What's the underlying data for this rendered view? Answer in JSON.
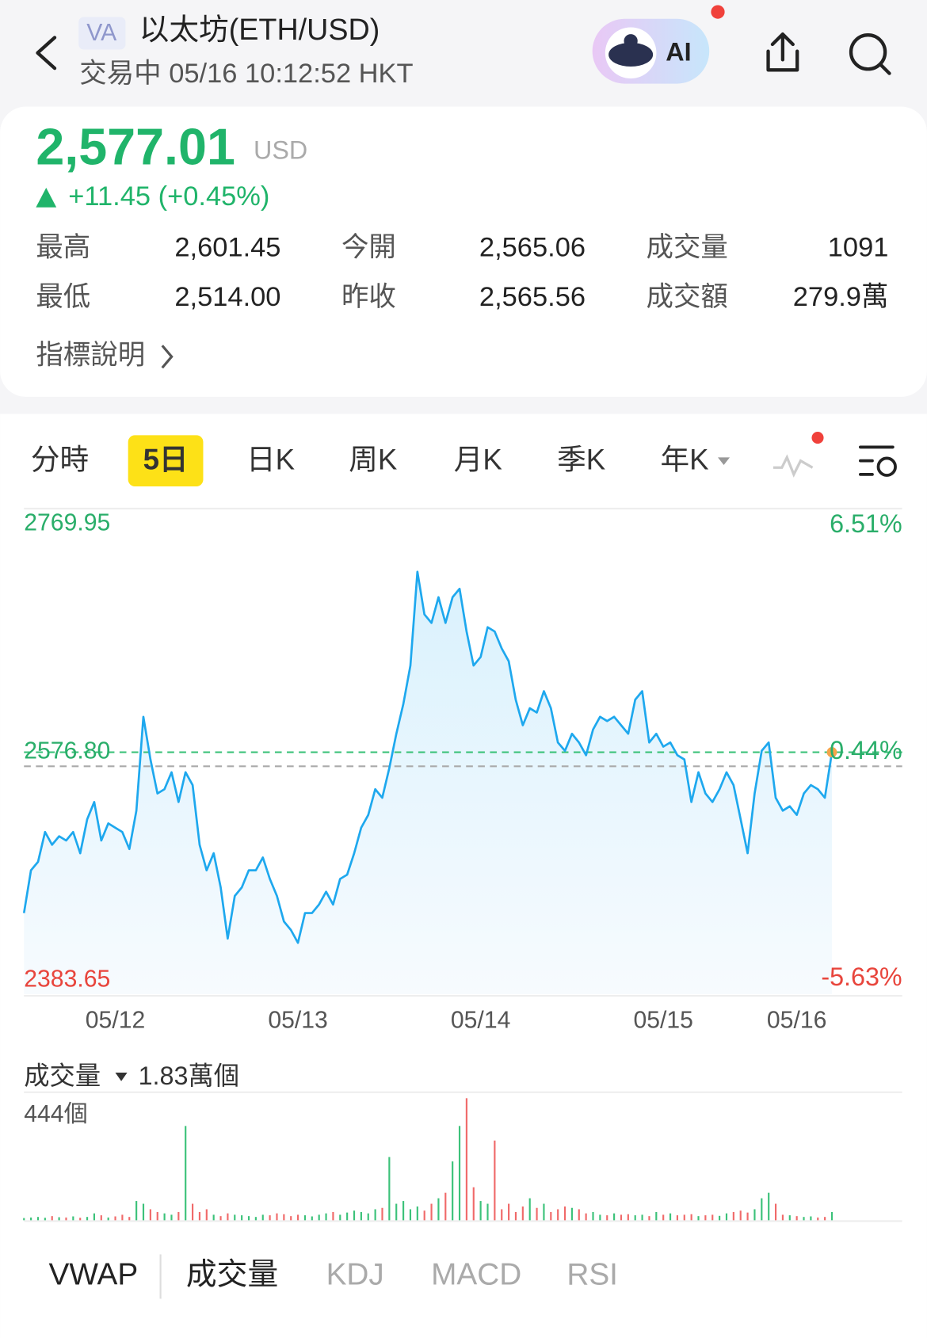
{
  "header": {
    "badge": "VA",
    "title": "以太坊(ETH/USD)",
    "status": "交易中 05/16 10:12:52 HKT",
    "ai": "AI"
  },
  "quote": {
    "price": "2,577.01",
    "currency": "USD",
    "change": "+11.45 (+0.45%)",
    "stats": [
      [
        {
          "label": "最高",
          "value": "2,601.45"
        },
        {
          "label": "今開",
          "value": "2,565.06"
        },
        {
          "label": "成交量",
          "value": "1091"
        }
      ],
      [
        {
          "label": "最低",
          "value": "2,514.00"
        },
        {
          "label": "昨收",
          "value": "2,565.56"
        },
        {
          "label": "成交額",
          "value": "279.9萬"
        }
      ]
    ],
    "indicator_link": "指標說明"
  },
  "tabs": {
    "items": [
      "分時",
      "5日",
      "日K",
      "周K",
      "月K",
      "季K",
      "年K"
    ],
    "active": 1
  },
  "chart_data": {
    "type": "line",
    "color": "#1ea8ee",
    "prev_close": 2565.56,
    "xlim": [
      0,
      125
    ],
    "xticks": [
      {
        "value": 13,
        "label": "05/12"
      },
      {
        "value": 39,
        "label": "05/13"
      },
      {
        "value": 65,
        "label": "05/14"
      },
      {
        "value": 91,
        "label": "05/15"
      },
      {
        "value": 110,
        "label": "05/16"
      }
    ],
    "ylim": [
      2383.65,
      2769.95
    ],
    "yticks": [
      2769.95,
      2383.65
    ],
    "y2lim": [
      -5.63,
      6.51
    ],
    "y2ticks": [
      {
        "value": 6.51,
        "label": "6.51%"
      },
      {
        "value": -5.63,
        "label": "-5.63%"
      }
    ],
    "last_price": {
      "value": 2576.8,
      "label": "2576.80"
    },
    "last_change": {
      "value": 0.44,
      "label": "0.44%"
    },
    "values": [
      2448.4,
      2482.5,
      2489.3,
      2513.1,
      2502.9,
      2509.7,
      2506.3,
      2513.1,
      2496.1,
      2523.3,
      2537.0,
      2506.3,
      2520.0,
      2516.5,
      2513.1,
      2499.5,
      2530.1,
      2605.1,
      2571.0,
      2543.8,
      2547.2,
      2560.8,
      2537.0,
      2560.8,
      2550.6,
      2502.9,
      2482.5,
      2496.1,
      2468.8,
      2428.0,
      2462.0,
      2468.8,
      2482.5,
      2482.5,
      2492.7,
      2475.6,
      2462.0,
      2441.6,
      2434.8,
      2424.6,
      2448.4,
      2448.4,
      2455.2,
      2465.4,
      2455.2,
      2475.6,
      2479.0,
      2496.1,
      2516.5,
      2526.7,
      2547.2,
      2540.4,
      2564.2,
      2591.5,
      2615.3,
      2646.0,
      2720.9,
      2686.8,
      2680.0,
      2700.5,
      2680.0,
      2700.5,
      2707.3,
      2673.2,
      2646.0,
      2652.8,
      2676.6,
      2673.2,
      2659.6,
      2649.4,
      2618.7,
      2598.3,
      2611.9,
      2608.5,
      2625.5,
      2611.9,
      2584.6,
      2577.9,
      2591.5,
      2584.6,
      2574.4,
      2594.9,
      2605.1,
      2601.7,
      2605.1,
      2598.3,
      2591.5,
      2618.7,
      2625.5,
      2584.6,
      2591.5,
      2581.2,
      2584.6,
      2574.4,
      2571.0,
      2537.0,
      2560.8,
      2543.8,
      2537.0,
      2547.2,
      2560.8,
      2550.6,
      2523.3,
      2496.1,
      2543.8,
      2577.9,
      2584.6,
      2540.4,
      2530.1,
      2533.6,
      2526.7,
      2543.8,
      2550.6,
      2547.2,
      2540.4,
      2576.8
    ],
    "volume": {
      "label": "成交量",
      "total": "1.83萬個",
      "max_label": "444個",
      "ylim": [
        0,
        444
      ],
      "values": [
        8,
        10,
        12,
        9,
        15,
        11,
        10,
        14,
        9,
        12,
        25,
        18,
        10,
        14,
        20,
        12,
        70,
        60,
        40,
        30,
        25,
        20,
        30,
        343,
        60,
        30,
        40,
        20,
        15,
        25,
        20,
        18,
        15,
        12,
        20,
        18,
        25,
        22,
        15,
        20,
        18,
        14,
        20,
        25,
        30,
        20,
        28,
        35,
        30,
        25,
        40,
        45,
        230,
        60,
        70,
        40,
        50,
        35,
        60,
        80,
        100,
        214,
        343,
        444,
        120,
        70,
        60,
        290,
        40,
        60,
        30,
        50,
        80,
        45,
        60,
        30,
        40,
        50,
        45,
        40,
        25,
        30,
        20,
        18,
        25,
        20,
        22,
        18,
        20,
        15,
        30,
        20,
        25,
        18,
        20,
        22,
        15,
        18,
        20,
        16,
        25,
        30,
        35,
        28,
        40,
        80,
        100,
        60,
        20,
        18,
        15,
        12,
        14,
        10,
        12,
        30
      ]
    }
  },
  "indicators": {
    "items": [
      "VWAP",
      "成交量",
      "KDJ",
      "MACD",
      "RSI"
    ]
  }
}
